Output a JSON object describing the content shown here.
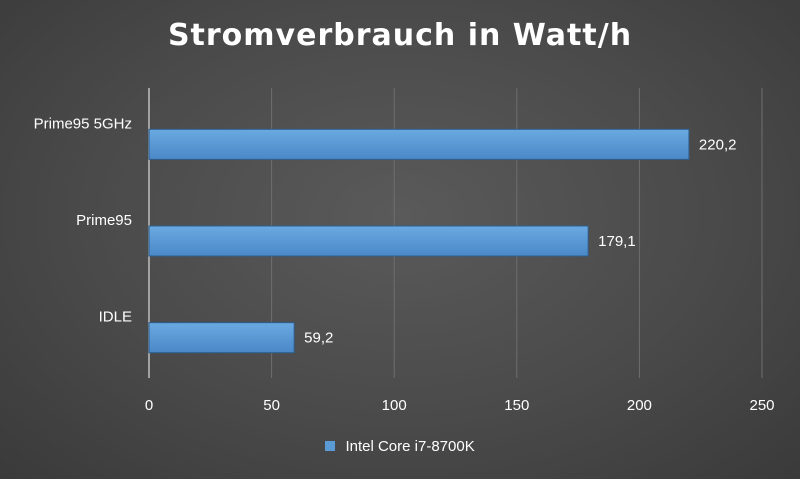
{
  "chart_data": {
    "type": "bar",
    "orientation": "horizontal",
    "title": "Stromverbrauch in Watt/h",
    "categories": [
      "Prime95 5GHz",
      "Prime95",
      "IDLE"
    ],
    "series": [
      {
        "name": "Intel Core i7-8700K",
        "values": [
          220.2,
          179.1,
          59.2
        ],
        "value_labels": [
          "220,2",
          "179,1",
          "59,2"
        ]
      }
    ],
    "xlim": [
      0,
      250
    ],
    "x_ticks": [
      "0",
      "50",
      "100",
      "150",
      "200",
      "250"
    ],
    "grid": true,
    "legend_position": "bottom",
    "colors": {
      "bar": "#5b9bd5",
      "background": "#4a4a4a",
      "grid": "#6e6e6e",
      "text": "#ffffff"
    }
  }
}
